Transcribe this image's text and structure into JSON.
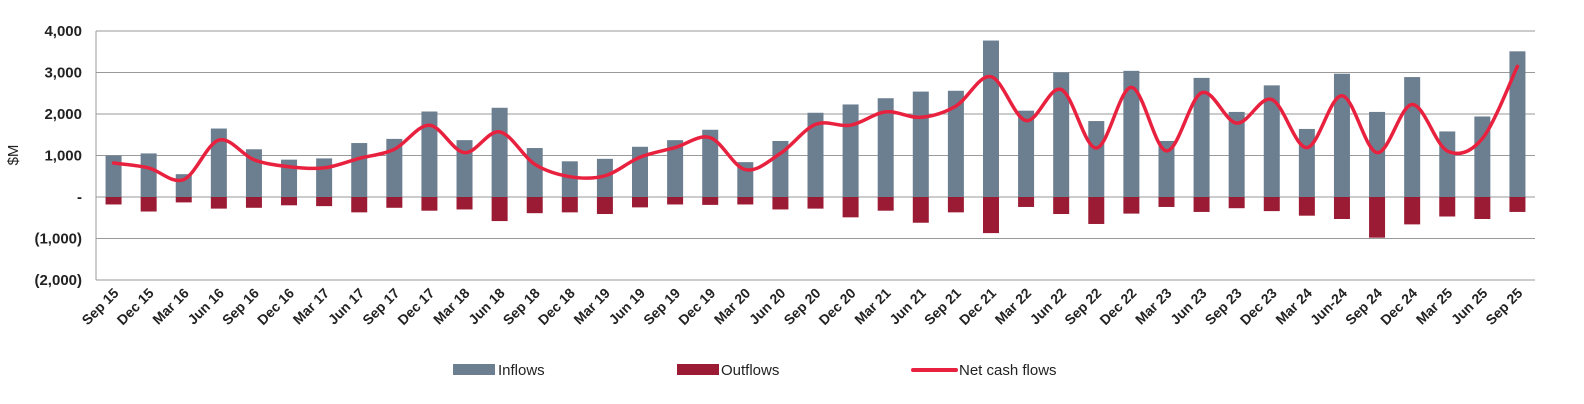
{
  "chart_data": {
    "type": "bar",
    "ylabel": "$M",
    "ylim": [
      -2000,
      4000
    ],
    "yticks": [
      {
        "value": 4000,
        "label": "4,000"
      },
      {
        "value": 3000,
        "label": "3,000"
      },
      {
        "value": 2000,
        "label": "2,000"
      },
      {
        "value": 1000,
        "label": "1,000"
      },
      {
        "value": 0,
        "label": "-"
      },
      {
        "value": -1000,
        "label": "(1,000)"
      },
      {
        "value": -2000,
        "label": "(2,000)"
      }
    ],
    "grid": true,
    "legend_position": "bottom",
    "categories": [
      "Sep 15",
      "Dec 15",
      "Mar 16",
      "Jun 16",
      "Sep 16",
      "Dec 16",
      "Mar 17",
      "Jun 17",
      "Sep 17",
      "Dec 17",
      "Mar 18",
      "Jun 18",
      "Sep 18",
      "Dec 18",
      "Mar 19",
      "Jun 19",
      "Sep 19",
      "Dec 19",
      "Mar 20",
      "Jun 20",
      "Sep 20",
      "Dec 20",
      "Mar 21",
      "Jun 21",
      "Sep 21",
      "Dec 21",
      "Mar 22",
      "Jun 22",
      "Sep 22",
      "Dec 22",
      "Mar 23",
      "Jun 23",
      "Sep 23",
      "Dec 23",
      "Mar 24",
      "Jun-24",
      "Sep 24",
      "Dec 24",
      "Mar 25",
      "Jun 25",
      "Sep 25"
    ],
    "series": [
      {
        "name": "Inflows",
        "type": "bar",
        "color": "#6b7f91",
        "values": [
          1000,
          1050,
          550,
          1650,
          1150,
          900,
          930,
          1300,
          1400,
          2060,
          1370,
          2150,
          1180,
          860,
          920,
          1210,
          1370,
          1620,
          840,
          1350,
          2030,
          2230,
          2380,
          2540,
          2560,
          3770,
          2080,
          3000,
          1830,
          3040,
          1350,
          2870,
          2050,
          2690,
          1640,
          2970,
          2050,
          2890,
          1580,
          1940,
          3510
        ]
      },
      {
        "name": "Outflows",
        "type": "bar",
        "color": "#9b1b34",
        "values": [
          -180,
          -350,
          -130,
          -280,
          -260,
          -200,
          -220,
          -370,
          -260,
          -330,
          -300,
          -580,
          -390,
          -370,
          -410,
          -250,
          -180,
          -190,
          -180,
          -300,
          -280,
          -490,
          -330,
          -620,
          -370,
          -870,
          -240,
          -410,
          -650,
          -400,
          -240,
          -360,
          -270,
          -340,
          -450,
          -530,
          -980,
          -660,
          -470,
          -530,
          -360
        ]
      },
      {
        "name": "Net cash flows",
        "type": "line",
        "color": "#e8213f",
        "values": [
          820,
          700,
          420,
          1370,
          900,
          730,
          700,
          930,
          1150,
          1730,
          1070,
          1570,
          790,
          490,
          510,
          960,
          1190,
          1430,
          660,
          1050,
          1750,
          1730,
          2050,
          1920,
          2190,
          2900,
          1840,
          2590,
          1180,
          2640,
          1110,
          2510,
          1780,
          2350,
          1190,
          2440,
          1070,
          2230,
          1110,
          1410,
          3150
        ]
      }
    ]
  }
}
